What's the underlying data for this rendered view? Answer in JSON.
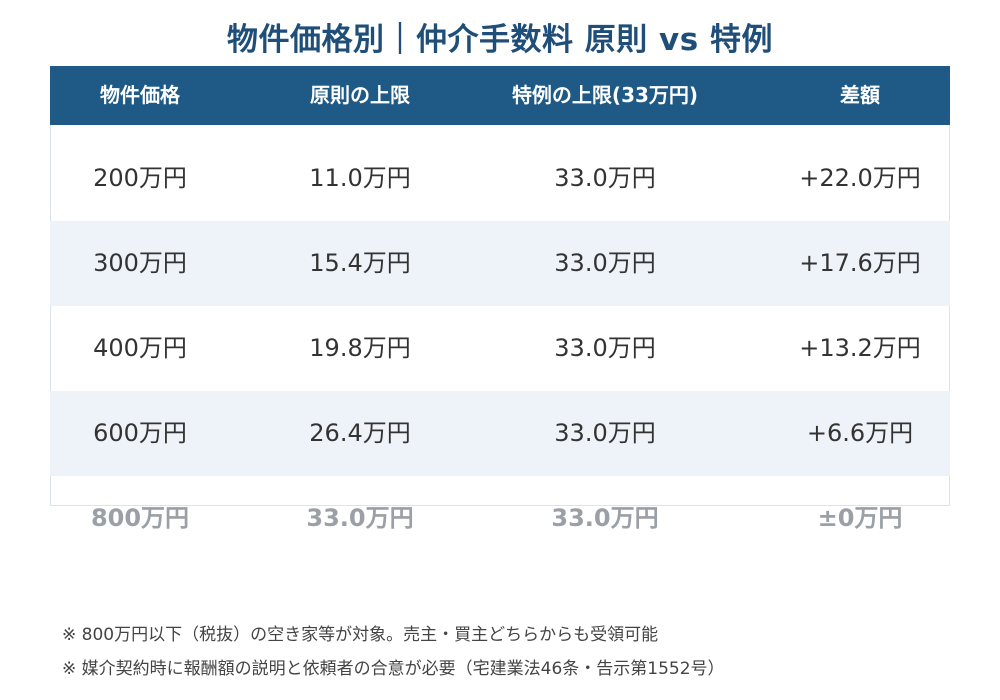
{
  "title": "物件価格別｜仲介手数料 原則 vs 特例",
  "chart_data": {
    "type": "table",
    "title": "物件価格別｜仲介手数料 原則 vs 特例",
    "columns": [
      "物件価格",
      "原則の上限",
      "特例の上限(33万円)",
      "差額"
    ],
    "rows": [
      [
        "200万円",
        "11.0万円",
        "33.0万円",
        "+22.0万円"
      ],
      [
        "300万円",
        "15.4万円",
        "33.0万円",
        "+17.6万円"
      ],
      [
        "400万円",
        "19.8万円",
        "33.0万円",
        "+13.2万円"
      ],
      [
        "600万円",
        "26.4万円",
        "33.0万円",
        "+6.6万円"
      ],
      [
        "800万円",
        "33.0万円",
        "33.0万円",
        "±0万円"
      ]
    ]
  },
  "notes": [
    "※ 800万円以下（税抜）の空き家等が対象。売主・買主どちらからも受領可能",
    "※ 媒介契約時に報酬額の説明と依頼者の合意が必要（宅建業法46条・告示第1552号）"
  ],
  "colors": {
    "title": "#1f4e79",
    "header_bg": "#1f5a87",
    "alt_row": "#eef3f9",
    "faded_text": "#9aa0a6"
  }
}
